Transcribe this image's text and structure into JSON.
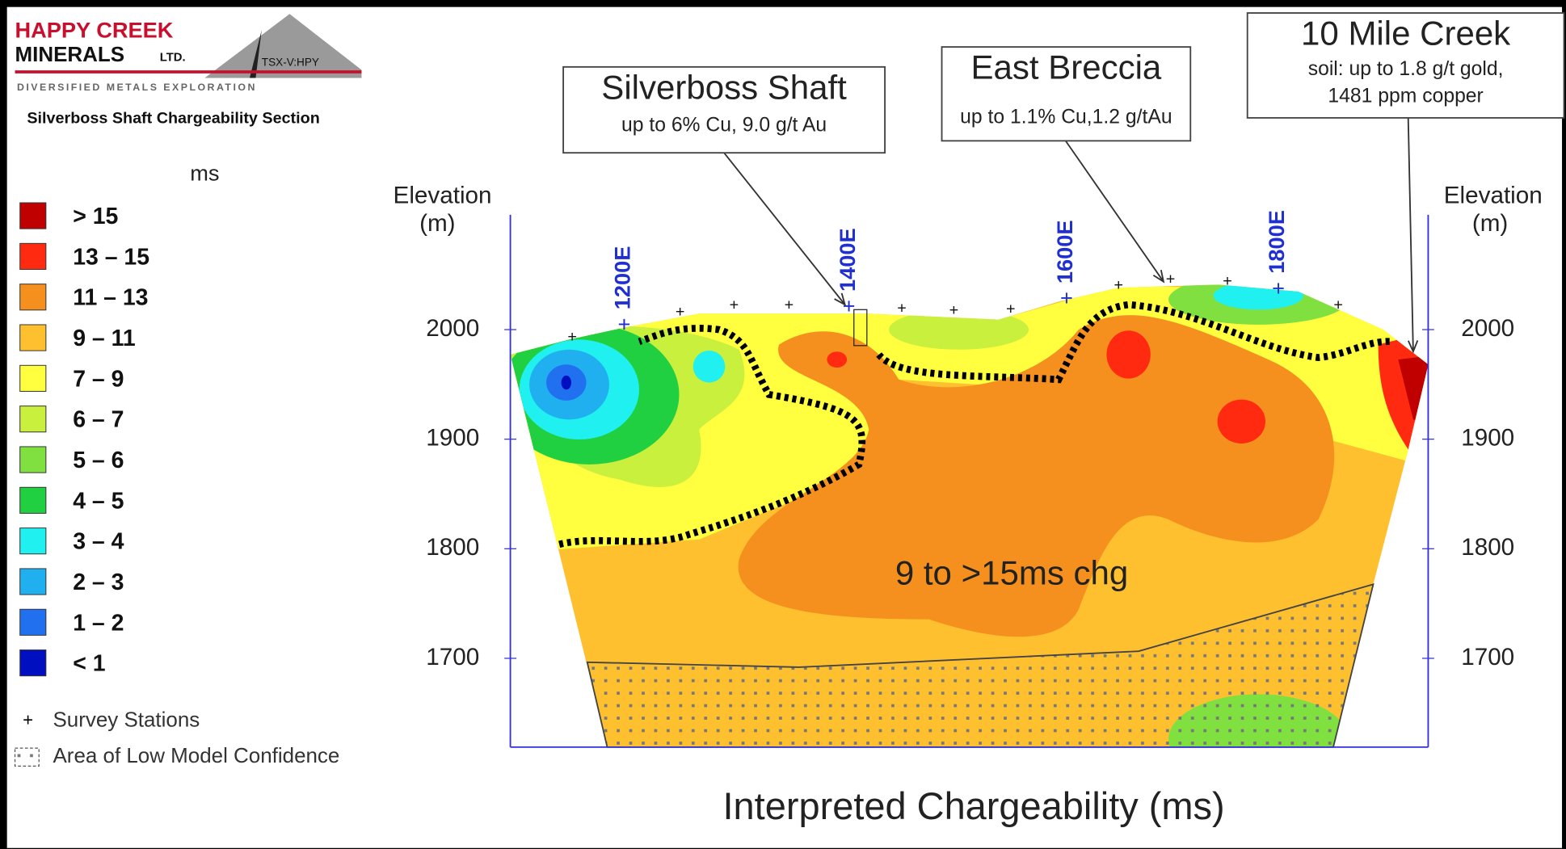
{
  "header": {
    "company_line1": "HAPPY CREEK",
    "company_line2": "MINERALS",
    "company_suffix": "LTD.",
    "ticker": "TSX-V:HPY",
    "tagline": "DIVERSIFIED METALS EXPLORATION",
    "subtitle": "Silverboss Shaft Chargeability Section"
  },
  "legend": {
    "unit": "ms",
    "items": [
      {
        "label": "> 15",
        "color": "#c00000"
      },
      {
        "label": "13 – 15",
        "color": "#ff2a10"
      },
      {
        "label": "11 – 13",
        "color": "#f5901e"
      },
      {
        "label": "9 – 11",
        "color": "#ffc030"
      },
      {
        "label": "7 – 9",
        "color": "#ffff40"
      },
      {
        "label": "6 – 7",
        "color": "#c8f03c"
      },
      {
        "label": "5 – 6",
        "color": "#80e040"
      },
      {
        "label": "4 – 5",
        "color": "#20d040"
      },
      {
        "label": "3 – 4",
        "color": "#20f0f0"
      },
      {
        "label": "2 – 3",
        "color": "#20b0f0"
      },
      {
        "label": "1 – 2",
        "color": "#2070f0"
      },
      {
        "label": "< 1",
        "color": "#0010c0"
      }
    ],
    "survey_stations": "Survey Stations",
    "low_confidence": "Area of Low Model Confidence"
  },
  "section": {
    "elevation_label": "Elevation",
    "elevation_unit": "(m)",
    "elevation_ticks": [
      2000,
      1900,
      1800,
      1700
    ],
    "stations": [
      "1200E",
      "1400E",
      "1600E",
      "1800E"
    ],
    "annotation": "9 to >15ms chg",
    "x_title": "Interpreted Chargeability (ms)"
  },
  "callouts": [
    {
      "title": "Silverboss Shaft",
      "lines": [
        "up to 6% Cu, 9.0 g/t Au"
      ]
    },
    {
      "title": "East Breccia",
      "lines": [
        "up to 1.1% Cu,1.2 g/tAu"
      ]
    },
    {
      "title": "10 Mile Creek",
      "lines": [
        "soil: up to 1.8 g/t gold,",
        "1481 ppm copper"
      ]
    }
  ]
}
